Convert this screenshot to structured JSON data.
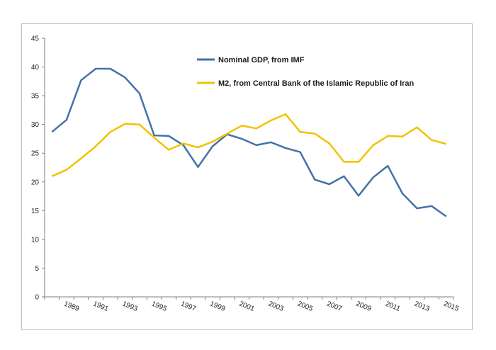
{
  "chart_data": {
    "type": "line",
    "title": "",
    "xlabel": "",
    "ylabel": "",
    "ylim": [
      0,
      45
    ],
    "y_ticks": [
      "0",
      "5",
      "10",
      "15",
      "20",
      "25",
      "30",
      "35",
      "40",
      "45"
    ],
    "x_tick_labels": [
      "1989",
      "1991",
      "1993",
      "1995",
      "1997",
      "1999",
      "2001",
      "2003",
      "2005",
      "2007",
      "2009",
      "2011",
      "2013",
      "2015"
    ],
    "x": [
      1988,
      1989,
      1990,
      1991,
      1992,
      1993,
      1994,
      1995,
      1996,
      1997,
      1998,
      1999,
      2000,
      2001,
      2002,
      2003,
      2004,
      2005,
      2006,
      2007,
      2008,
      2009,
      2010,
      2011,
      2012,
      2013,
      2014,
      2015
    ],
    "series": [
      {
        "name": "Nominal GDP, from IMF",
        "color": "#4472a8",
        "values": [
          28.7,
          30.8,
          37.7,
          39.7,
          39.7,
          38.2,
          35.4,
          28.1,
          28.0,
          26.4,
          22.6,
          26.2,
          28.3,
          27.5,
          26.4,
          26.9,
          25.9,
          25.2,
          20.4,
          19.6,
          21.0,
          17.6,
          20.8,
          22.8,
          18.0,
          15.4,
          15.8,
          14.0
        ]
      },
      {
        "name": "M2, from Central Bank of the Islamic Republic of Iran",
        "color": "#f2c200",
        "values": [
          21.0,
          22.1,
          24.1,
          26.2,
          28.7,
          30.1,
          30.0,
          27.7,
          25.6,
          26.7,
          26.0,
          27.0,
          28.4,
          29.8,
          29.3,
          30.7,
          31.8,
          28.7,
          28.4,
          26.7,
          23.5,
          23.5,
          26.4,
          28.0,
          27.9,
          29.5,
          27.3,
          26.6
        ]
      }
    ],
    "legend_position": "top-center",
    "grid": false
  }
}
